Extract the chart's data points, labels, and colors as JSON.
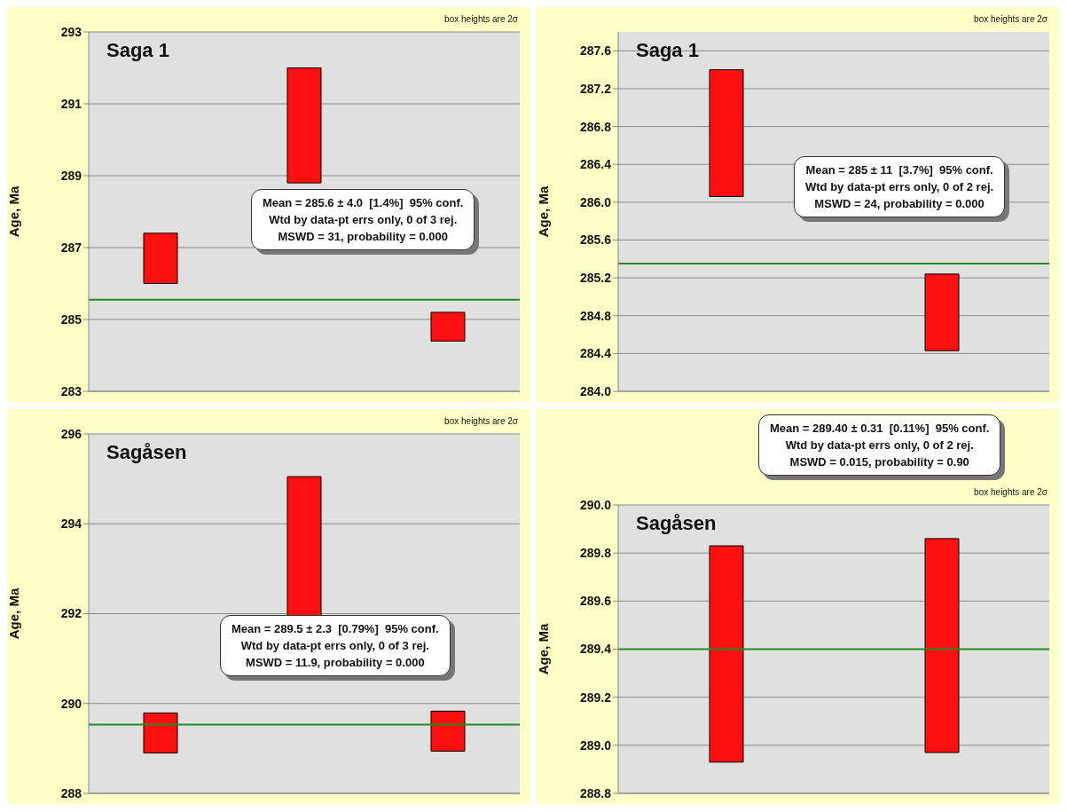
{
  "chart_data": [
    {
      "type": "bar",
      "title": "Saga 1",
      "ylabel": "Age, Ma",
      "categories": [
        null,
        null,
        null
      ],
      "values": [
        1.4,
        3.2,
        0.8
      ],
      "base": [
        286.0,
        288.8,
        284.4
      ],
      "color": "#ff1010",
      "ylim": [
        283,
        293
      ],
      "yticks": [
        283,
        285,
        287,
        289,
        291,
        293
      ],
      "grid": "y",
      "ref_lines": [
        {
          "axis": "y",
          "value": 285.55,
          "color": "#1e8c1e"
        }
      ],
      "annotations": [
        "box heights are 2σ",
        "Mean = 285.6 ± 4.0  [1.4%]  95% conf.",
        "Wtd by data-pt errs only, 0 of 3 rej.",
        "MSWD = 31, probability = 0.000"
      ]
    },
    {
      "type": "bar",
      "title": "Saga 1",
      "ylabel": "Age, Ma",
      "categories": [
        null,
        null
      ],
      "values": [
        1.34,
        0.81
      ],
      "base": [
        286.06,
        284.43
      ],
      "color": "#ff1010",
      "ylim": [
        284.0,
        287.8
      ],
      "yticks": [
        {
          "value": 284,
          "label": "284.0"
        },
        284.4,
        284.8,
        285.2,
        285.6,
        {
          "value": 286,
          "label": "286.0"
        },
        286.4,
        286.8,
        287.2,
        287.6
      ],
      "grid": "y",
      "ref_lines": [
        {
          "axis": "y",
          "value": 285.35,
          "color": "#1e8c1e"
        }
      ],
      "annotations": [
        "box heights are 2σ",
        "Mean = 285 ± 11  [3.7%]  95% conf.",
        "Wtd by data-pt errs only, 0 of 2 rej.",
        "MSWD = 24, probability = 0.000"
      ]
    },
    {
      "type": "bar",
      "title": "Sagåsen",
      "ylabel": "Age, Ma",
      "categories": [
        null,
        null,
        null
      ],
      "values": [
        0.89,
        3.26,
        0.89
      ],
      "base": [
        288.9,
        291.79,
        288.94
      ],
      "color": "#ff1010",
      "ylim": [
        288,
        296
      ],
      "yticks": [
        288,
        290,
        292,
        294,
        296
      ],
      "grid": "y",
      "ref_lines": [
        {
          "axis": "y",
          "value": 289.53,
          "color": "#1e8c1e"
        }
      ],
      "annotations": [
        "box heights are 2σ",
        "Mean = 289.5 ± 2.3  [0.79%]  95% conf.",
        "Wtd by data-pt errs only, 0 of 3 rej.",
        "MSWD = 11.9, probability = 0.000"
      ]
    },
    {
      "type": "bar",
      "title": "Sagåsen",
      "ylabel": "Age, Ma",
      "categories": [
        null,
        null
      ],
      "values": [
        0.9,
        0.89
      ],
      "base": [
        288.93,
        288.97
      ],
      "color": "#ff1010",
      "ylim": [
        288.8,
        290.0
      ],
      "yticks": [
        288.8,
        {
          "value": 289,
          "label": "289.0"
        },
        289.2,
        289.4,
        289.6,
        289.8,
        {
          "value": 290,
          "label": "290.0"
        }
      ],
      "grid": "y",
      "ref_lines": [
        {
          "axis": "y",
          "value": 289.4,
          "color": "#1e8c1e"
        }
      ],
      "annotations": [
        "box heights are 2σ",
        "Mean = 289.40 ± 0.31  [0.11%]  95% conf.",
        "Wtd by data-pt errs only, 0 of 2 rej.",
        "MSWD = 0.015, probability = 0.90"
      ]
    }
  ]
}
